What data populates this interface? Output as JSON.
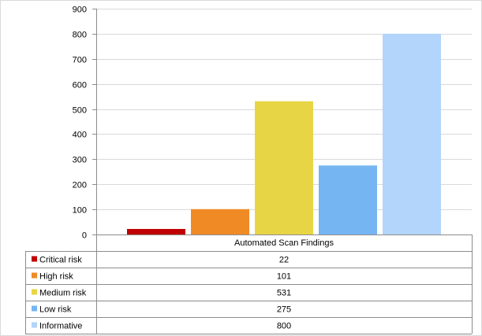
{
  "chart_data": {
    "type": "bar",
    "title": "",
    "xlabel": "",
    "ylabel": "",
    "categories": [
      "Automated Scan Findings"
    ],
    "ylim": [
      0,
      900
    ],
    "yticks": [
      0,
      100,
      200,
      300,
      400,
      500,
      600,
      700,
      800,
      900
    ],
    "grid": true,
    "legend": "data-table-below",
    "series": [
      {
        "name": "Critical risk",
        "values": [
          22
        ],
        "color": "#c00000"
      },
      {
        "name": "High risk",
        "values": [
          101
        ],
        "color": "#f08a24"
      },
      {
        "name": "Medium risk",
        "values": [
          531
        ],
        "color": "#e8d545"
      },
      {
        "name": "Low risk",
        "values": [
          275
        ],
        "color": "#75b5f2"
      },
      {
        "name": "Informative",
        "values": [
          800
        ],
        "color": "#b3d4fb"
      }
    ]
  }
}
